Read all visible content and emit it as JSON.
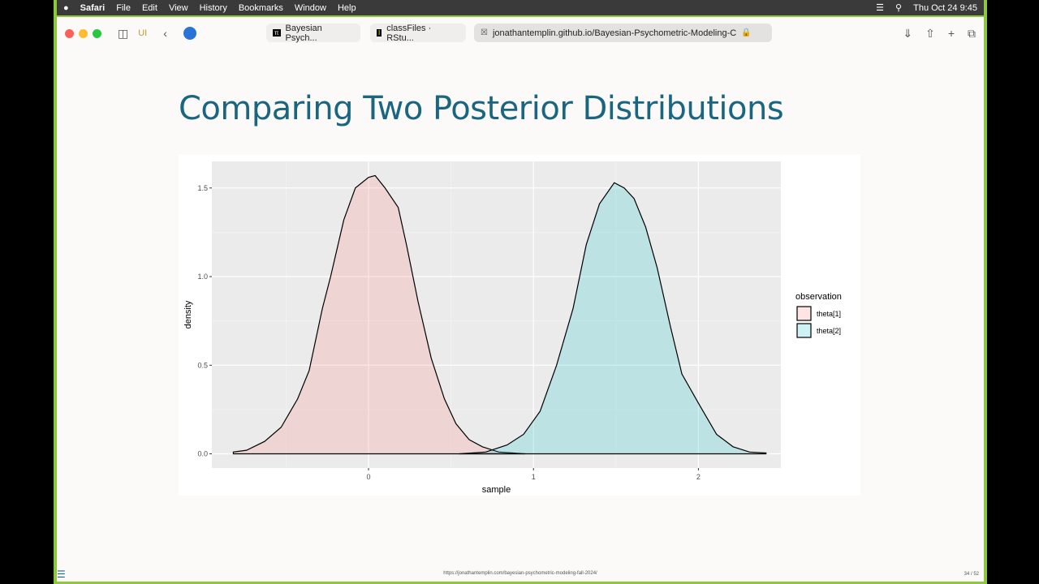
{
  "menubar": {
    "apple": "",
    "app": "Safari",
    "items": [
      "File",
      "Edit",
      "View",
      "History",
      "Bookmarks",
      "Window",
      "Help"
    ],
    "clock": "Thu Oct 24  9:45"
  },
  "toolbar": {
    "profile": "UI",
    "tabs": [
      {
        "label": "Bayesian Psych..."
      },
      {
        "label": "classFiles · RStu..."
      },
      {
        "label": "jonathantemplin.github.io/Bayesian-Psychometric-Modeling-C"
      }
    ]
  },
  "slide": {
    "title": "Comparing Two Posterior Distributions",
    "footer_url": "https://jonathantemplin.com/bayesian-psychometric-modeling-fall-2024/",
    "page": "34 / 52"
  },
  "chart_data": {
    "type": "area",
    "xlabel": "sample",
    "ylabel": "density",
    "xlim": [
      -0.95,
      2.5
    ],
    "ylim": [
      -0.08,
      1.65
    ],
    "xticks": [
      0,
      1,
      2
    ],
    "yticks": [
      0.0,
      0.5,
      1.0,
      1.5
    ],
    "ytick_labels": [
      "0.0",
      "0.5",
      "1.0",
      "1.5"
    ],
    "grid": true,
    "legend": {
      "title": "observation",
      "position": "right"
    },
    "series": [
      {
        "name": "theta[1]",
        "color": "#f8766d",
        "x": [
          -0.82,
          -0.74,
          -0.63,
          -0.53,
          -0.43,
          -0.36,
          -0.28,
          -0.23,
          -0.15,
          -0.08,
          0,
          0.04,
          0.1,
          0.18,
          0.23,
          0.3,
          0.38,
          0.46,
          0.53,
          0.61,
          0.69,
          0.79,
          0.95
        ],
        "y": [
          0.01,
          0.02,
          0.07,
          0.15,
          0.31,
          0.47,
          0.82,
          1.0,
          1.32,
          1.5,
          1.56,
          1.57,
          1.5,
          1.39,
          1.18,
          0.86,
          0.54,
          0.31,
          0.17,
          0.08,
          0.04,
          0.01,
          0.0
        ]
      },
      {
        "name": "theta[2]",
        "color": "#00bfc4",
        "x": [
          0.55,
          0.71,
          0.84,
          0.94,
          1.04,
          1.14,
          1.24,
          1.32,
          1.4,
          1.49,
          1.55,
          1.61,
          1.68,
          1.75,
          1.83,
          1.9,
          2.01,
          2.11,
          2.21,
          2.31,
          2.41
        ],
        "y": [
          0.0,
          0.01,
          0.05,
          0.11,
          0.24,
          0.5,
          0.82,
          1.18,
          1.41,
          1.53,
          1.5,
          1.44,
          1.28,
          1.05,
          0.72,
          0.45,
          0.27,
          0.11,
          0.04,
          0.01,
          0.005
        ]
      }
    ]
  }
}
